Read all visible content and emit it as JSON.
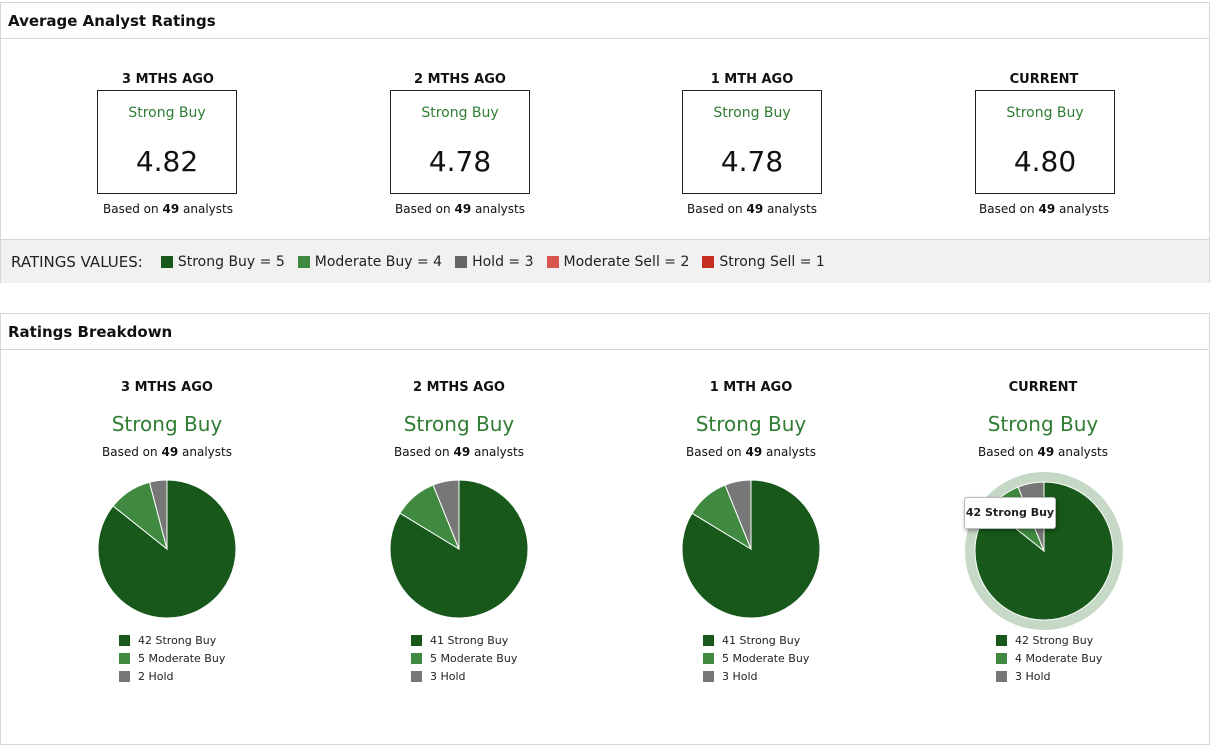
{
  "colors": {
    "strong_buy": "#18591b",
    "moderate_buy": "#3f8a40",
    "hold": "#777777",
    "moderate_sell": "#d9534f",
    "strong_sell": "#c62f1f",
    "highlight_ring": "#c6d8c6"
  },
  "average": {
    "title": "Average Analyst Ratings",
    "based_prefix": "Based on",
    "based_suffix": "analysts",
    "columns": [
      {
        "period": "3 MTHS AGO",
        "label": "Strong Buy",
        "score": "4.82",
        "analysts": "49"
      },
      {
        "period": "2 MTHS AGO",
        "label": "Strong Buy",
        "score": "4.78",
        "analysts": "49"
      },
      {
        "period": "1 MTH AGO",
        "label": "Strong Buy",
        "score": "4.78",
        "analysts": "49"
      },
      {
        "period": "CURRENT",
        "label": "Strong Buy",
        "score": "4.80",
        "analysts": "49"
      }
    ],
    "ratings_values": {
      "title": "RATINGS VALUES:",
      "items": [
        {
          "text": "Strong Buy = 5",
          "color": "#18591b"
        },
        {
          "text": "Moderate Buy = 4",
          "color": "#3f8a40"
        },
        {
          "text": "Hold = 3",
          "color": "#666666"
        },
        {
          "text": "Moderate Sell = 2",
          "color": "#d9534f"
        },
        {
          "text": "Strong Sell = 1",
          "color": "#c62f1f"
        }
      ]
    }
  },
  "breakdown": {
    "title": "Ratings Breakdown",
    "columns": [
      {
        "period": "3 MTHS AGO",
        "label": "Strong Buy",
        "analysts": "49",
        "slices": [
          {
            "name": "Strong Buy",
            "count": 42,
            "legend": "42 Strong Buy"
          },
          {
            "name": "Moderate Buy",
            "count": 5,
            "legend": "5 Moderate Buy"
          },
          {
            "name": "Hold",
            "count": 2,
            "legend": "2 Hold"
          }
        ]
      },
      {
        "period": "2 MTHS AGO",
        "label": "Strong Buy",
        "analysts": "49",
        "slices": [
          {
            "name": "Strong Buy",
            "count": 41,
            "legend": "41 Strong Buy"
          },
          {
            "name": "Moderate Buy",
            "count": 5,
            "legend": "5 Moderate Buy"
          },
          {
            "name": "Hold",
            "count": 3,
            "legend": "3 Hold"
          }
        ]
      },
      {
        "period": "1 MTH AGO",
        "label": "Strong Buy",
        "analysts": "49",
        "slices": [
          {
            "name": "Strong Buy",
            "count": 41,
            "legend": "41 Strong Buy"
          },
          {
            "name": "Moderate Buy",
            "count": 5,
            "legend": "5 Moderate Buy"
          },
          {
            "name": "Hold",
            "count": 3,
            "legend": "3 Hold"
          }
        ]
      },
      {
        "period": "CURRENT",
        "label": "Strong Buy",
        "analysts": "49",
        "highlighted": true,
        "slices": [
          {
            "name": "Strong Buy",
            "count": 42,
            "legend": "42 Strong Buy"
          },
          {
            "name": "Moderate Buy",
            "count": 4,
            "legend": "4 Moderate Buy"
          },
          {
            "name": "Hold",
            "count": 3,
            "legend": "3 Hold"
          }
        ]
      }
    ],
    "tooltip": "42 Strong Buy"
  }
}
